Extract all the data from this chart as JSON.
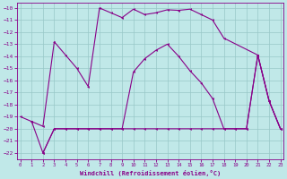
{
  "xlabel": "Windchill (Refroidissement éolien,°C)",
  "bg_color": "#c0e8e8",
  "grid_color": "#98c8c8",
  "line_color": "#880088",
  "xlim_min": -0.3,
  "xlim_max": 23.3,
  "ylim_min": -22.5,
  "ylim_max": -9.6,
  "xticks": [
    0,
    1,
    2,
    3,
    4,
    5,
    6,
    7,
    8,
    9,
    10,
    11,
    12,
    13,
    14,
    15,
    16,
    17,
    18,
    19,
    20,
    21,
    22,
    23
  ],
  "yticks": [
    -22,
    -21,
    -20,
    -19,
    -18,
    -17,
    -16,
    -15,
    -14,
    -13,
    -12,
    -11,
    -10
  ],
  "curve1_x": [
    0,
    1,
    2,
    3,
    4,
    5,
    6,
    7,
    8,
    9,
    10,
    11,
    12,
    13,
    14,
    15,
    16,
    17,
    18,
    21,
    22,
    23
  ],
  "curve1_y": [
    -19.0,
    -19.4,
    -19.8,
    -12.8,
    -13.9,
    -15.0,
    -16.5,
    -10.0,
    -10.4,
    -10.8,
    -10.1,
    -10.55,
    -10.4,
    -10.15,
    -10.2,
    -10.1,
    -10.55,
    -11.0,
    -12.5,
    -13.9,
    -17.7,
    -20.0
  ],
  "curve2_x": [
    1,
    2,
    3,
    4,
    5,
    6,
    7,
    8,
    9,
    10,
    11,
    12,
    13,
    14,
    15,
    16,
    17,
    18,
    19,
    20,
    21,
    22,
    23
  ],
  "curve2_y": [
    -19.4,
    -22.0,
    -20.0,
    -20.0,
    -20.0,
    -20.0,
    -20.0,
    -20.0,
    -20.0,
    -20.0,
    -20.0,
    -20.0,
    -20.0,
    -20.0,
    -20.0,
    -20.0,
    -20.0,
    -20.0,
    -20.0,
    -20.0,
    -13.9,
    -17.7,
    -20.0
  ],
  "curve3_x": [
    2,
    3,
    4,
    5,
    6,
    7,
    8,
    9,
    10,
    11,
    12,
    13,
    14,
    15,
    16,
    17,
    18,
    19,
    20,
    21,
    22,
    23
  ],
  "curve3_y": [
    -22.0,
    -20.0,
    -20.0,
    -20.0,
    -20.0,
    -20.0,
    -20.0,
    -20.0,
    -15.3,
    -14.2,
    -13.5,
    -13.0,
    -14.0,
    -15.2,
    -16.2,
    -17.5,
    -20.0,
    -20.0,
    -20.0,
    -13.9,
    -17.7,
    -20.0
  ]
}
